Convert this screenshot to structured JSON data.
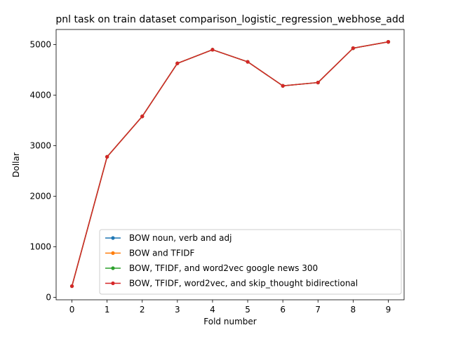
{
  "chart_data": {
    "type": "line",
    "title": "pnl task on train dataset comparison_logistic_regression_webhose_add",
    "xlabel": "Fold number",
    "ylabel": "Dollar",
    "x": [
      0,
      1,
      2,
      3,
      4,
      5,
      6,
      7,
      8,
      9
    ],
    "xticks": [
      "0",
      "1",
      "2",
      "3",
      "4",
      "5",
      "6",
      "7",
      "8",
      "9"
    ],
    "yticks": [
      "0",
      "1000",
      "2000",
      "3000",
      "4000",
      "5000"
    ],
    "xlim": [
      -0.45,
      9.45
    ],
    "ylim": [
      -50,
      5300
    ],
    "grid": false,
    "legend_position": "lower-right",
    "series": [
      {
        "name": "BOW noun, verb and adj",
        "color": "#1f77b4",
        "values": [
          220,
          2780,
          3580,
          4630,
          4900,
          4660,
          4185,
          4250,
          4930,
          5055
        ]
      },
      {
        "name": "BOW and TFIDF",
        "color": "#ff7f0e",
        "values": [
          220,
          2780,
          3580,
          4630,
          4900,
          4660,
          4185,
          4250,
          4930,
          5055
        ]
      },
      {
        "name": "BOW, TFIDF, and word2vec google news 300",
        "color": "#2ca02c",
        "values": [
          220,
          2780,
          3580,
          4630,
          4900,
          4660,
          4185,
          4250,
          4930,
          5055
        ]
      },
      {
        "name": "BOW, TFIDF, word2vec, and skip_thought bidirectional",
        "color": "#d62728",
        "values": [
          220,
          2780,
          3580,
          4630,
          4900,
          4660,
          4185,
          4250,
          4930,
          5055
        ]
      }
    ]
  }
}
